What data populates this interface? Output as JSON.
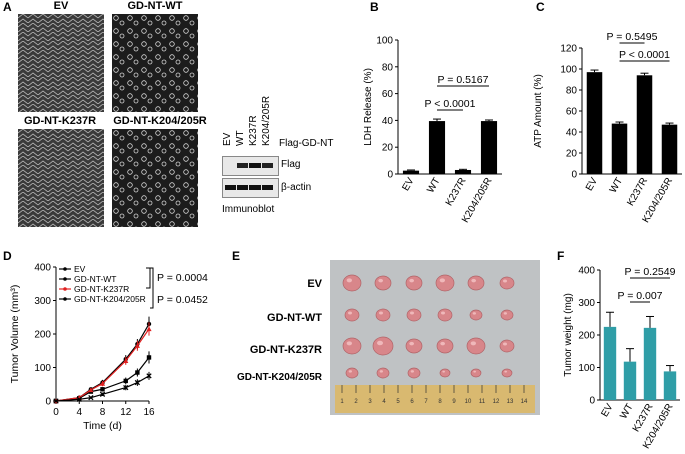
{
  "panels": {
    "a": "A",
    "b": "B",
    "c": "C",
    "d": "D",
    "e": "E",
    "f": "F"
  },
  "panel_a": {
    "images": [
      "EV",
      "GD-NT-WT",
      "GD-NT-K237R",
      "GD-NT-K204/205R"
    ],
    "lanes": [
      "EV",
      "WT",
      "K237R",
      "K204/205R"
    ],
    "blot_title": "Flag-GD-NT",
    "bands": [
      "Flag",
      "β-actin"
    ],
    "footer": "Immunoblot"
  },
  "panel_e": {
    "rows": [
      "EV",
      "GD-NT-WT",
      "GD-NT-K237R",
      "GD-NT-K204/205R"
    ],
    "ruler_numbers": [
      "1",
      "2",
      "3",
      "4",
      "5",
      "6",
      "7",
      "8",
      "9",
      "10",
      "11",
      "12",
      "13",
      "14"
    ]
  },
  "chart_data": [
    {
      "panel": "B",
      "type": "bar",
      "categories": [
        "EV",
        "WT",
        "K237R",
        "K204/205R"
      ],
      "values": [
        2.5,
        39.5,
        3.0,
        39.5
      ],
      "errors": [
        0.5,
        1.5,
        0.5,
        0.8
      ],
      "ylabel": "LDH Release (%)",
      "ylim": [
        0,
        100
      ],
      "yticks": [
        "0",
        "20",
        "40",
        "60",
        "80",
        "100"
      ],
      "annotations": [
        "P = 0.5167",
        "P < 0.0001"
      ],
      "color": "#000000"
    },
    {
      "panel": "C",
      "type": "bar",
      "categories": [
        "EV",
        "WT",
        "K237R",
        "K204/205R"
      ],
      "values": [
        97,
        48,
        94,
        47
      ],
      "errors": [
        2,
        1.5,
        2,
        1.5
      ],
      "ylabel": "ATP Amount (%)",
      "ylim": [
        0,
        120
      ],
      "yticks": [
        "0",
        "20",
        "40",
        "60",
        "80",
        "100",
        "120"
      ],
      "annotations": [
        "P = 0.5495",
        "P < 0.0001"
      ],
      "color": "#000000"
    },
    {
      "panel": "D",
      "type": "line",
      "x": [
        0,
        4,
        6,
        8,
        12,
        14,
        16
      ],
      "xticks": [
        "0",
        "4",
        "8",
        "12",
        "16"
      ],
      "yticks": [
        "0",
        "100",
        "200",
        "300",
        "400"
      ],
      "xlabel": "Time (d)",
      "ylabel": "Tumor Volume (mm³)",
      "ylim": [
        0,
        400
      ],
      "xlim": [
        0,
        16
      ],
      "series": [
        {
          "name": "EV",
          "color": "#000000",
          "marker": "circle",
          "values": [
            0,
            10,
            35,
            55,
            125,
            170,
            230
          ],
          "errors": [
            0,
            3,
            5,
            8,
            12,
            15,
            22
          ]
        },
        {
          "name": "GD-NT-WT",
          "color": "#000000",
          "marker": "square",
          "values": [
            0,
            8,
            28,
            35,
            60,
            85,
            130
          ],
          "errors": [
            0,
            3,
            5,
            6,
            10,
            12,
            18
          ]
        },
        {
          "name": "GD-NT-K237R",
          "color": "#e02020",
          "marker": "triangle",
          "values": [
            0,
            10,
            33,
            52,
            120,
            165,
            215
          ],
          "errors": [
            0,
            3,
            5,
            8,
            12,
            15,
            20
          ]
        },
        {
          "name": "GD-NT-K204/205R",
          "color": "#000000",
          "marker": "cross",
          "values": [
            0,
            5,
            10,
            20,
            40,
            55,
            75
          ],
          "errors": [
            0,
            2,
            3,
            5,
            8,
            10,
            12
          ]
        }
      ],
      "annotations": [
        "P = 0.0004",
        "P = 0.0452"
      ]
    },
    {
      "panel": "F",
      "type": "bar",
      "categories": [
        "EV",
        "WT",
        "K237R",
        "K204/205R"
      ],
      "values": [
        225,
        118,
        222,
        88
      ],
      "errors": [
        45,
        40,
        35,
        18
      ],
      "ylabel": "Tumor weight (mg)",
      "ylim": [
        0,
        400
      ],
      "yticks": [
        "0",
        "100",
        "200",
        "300",
        "400"
      ],
      "annotations": [
        "P = 0.2549",
        "P = 0.007"
      ],
      "color": "#2f9ea7"
    }
  ]
}
